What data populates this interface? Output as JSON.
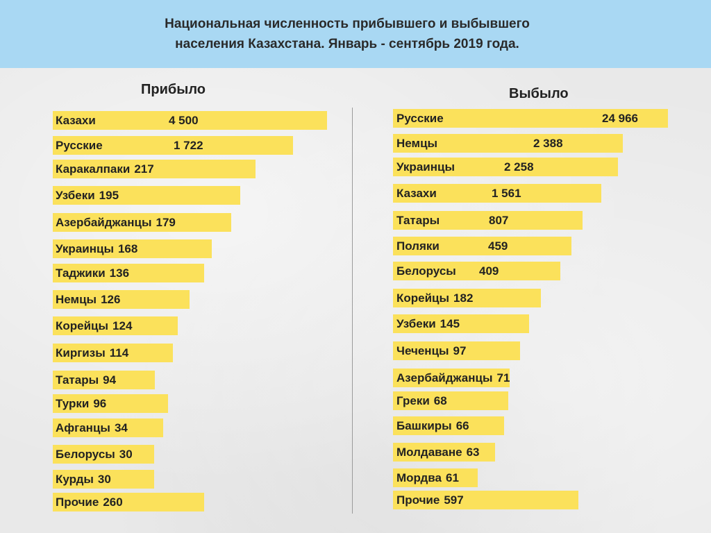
{
  "title": {
    "line1": "Национальная численность прибывшего и выбывшего",
    "line2": "населения Казахстана. Январь - сентябрь 2019 года."
  },
  "chart_data": [
    {
      "type": "bar",
      "orientation": "horizontal",
      "title": "Прибыло",
      "categories": [
        "Казахи",
        "Русские",
        "Каракалпаки",
        "Узбеки",
        "Азербайджанцы",
        "Украинцы",
        "Таджики",
        "Немцы",
        "Корейцы",
        "Киргизы",
        "Татары",
        "Турки",
        "Афганцы",
        "Белорусы",
        "Курды",
        "Прочие"
      ],
      "values": [
        4500,
        1722,
        217,
        195,
        179,
        168,
        136,
        126,
        124,
        114,
        94,
        96,
        34,
        30,
        30,
        260
      ],
      "value_labels": [
        "4 500",
        "1 722",
        "217",
        "195",
        "179",
        "168",
        "136",
        "126",
        "124",
        "114",
        "94",
        "96",
        "34",
        "30",
        "30",
        "260"
      ]
    },
    {
      "type": "bar",
      "orientation": "horizontal",
      "title": "Выбыло",
      "categories": [
        "Русские",
        "Немцы",
        "Украинцы",
        "Казахи",
        "Татары",
        "Поляки",
        "Белорусы",
        "Корейцы",
        "Узбеки",
        "Чеченцы",
        "Азербайджанцы",
        "Греки",
        "Башкиры",
        "Молдаване",
        "Мордва",
        "Прочие"
      ],
      "values": [
        24966,
        2388,
        2258,
        1561,
        807,
        459,
        409,
        182,
        145,
        97,
        71,
        68,
        66,
        63,
        61,
        597
      ],
      "value_labels": [
        "24 966",
        "2 388",
        "2 258",
        "1 561",
        "807",
        "459",
        "409",
        "182",
        "145",
        "97",
        "71",
        "68",
        "66",
        "63",
        "61",
        "597"
      ]
    }
  ]
}
